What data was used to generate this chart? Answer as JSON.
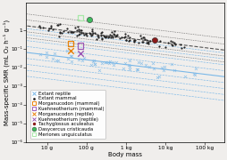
{
  "figsize_inches": [
    2.54,
    1.8
  ],
  "dpi": 100,
  "xlim": [
    3.0,
    300000
  ],
  "ylim": [
    1e-06,
    30
  ],
  "xlabel": "Body mass",
  "ylabel": "Mass-specific SMR (mL O₂ h⁻¹ g⁻¹)",
  "xtick_positions": [
    10,
    100,
    1000,
    10000,
    100000
  ],
  "xtick_labels": [
    "10 g",
    "100 g",
    "1 kg",
    "10 kg",
    "100 kg"
  ],
  "ytick_positions": [
    1e-06,
    1e-05,
    0.0001,
    0.001,
    0.01,
    0.1,
    1.0
  ],
  "ytick_labels": [
    "10⁻⁶",
    "10⁻⁵",
    "10⁻⁴",
    "10⁻³",
    "10⁻²",
    "10⁻¹",
    "1"
  ],
  "mammal_intercept": 0.38,
  "mammal_slope": -0.26,
  "reptile_intercept": -1.05,
  "reptile_slope": -0.26,
  "mammal_ci_offsets": [
    0.32,
    0.64
  ],
  "reptile_ci_offsets": [
    0.32,
    0.64,
    0.96,
    1.28
  ],
  "special_points": {
    "morganucodon_mammal": {
      "log_mass": 1.6,
      "log_smr": -0.7,
      "color": "#e8820a",
      "marker": "s"
    },
    "kuehneotherium_mammal": {
      "log_mass": 1.85,
      "log_smr": -0.82,
      "color": "#9b59b6",
      "marker": "s"
    },
    "morganucodon_reptile": {
      "log_mass": 1.6,
      "log_smr": -1.1,
      "color": "#e8820a",
      "marker": "x"
    },
    "kuehneotherium_reptile": {
      "log_mass": 1.85,
      "log_smr": -1.22,
      "color": "#9b59b6",
      "marker": "x"
    },
    "tachyglossus": {
      "log_mass": 3.72,
      "log_smr": -0.5,
      "color": "#8b1a1a",
      "marker": "o"
    },
    "dasycercus": {
      "log_mass": 2.08,
      "log_smr": 0.58,
      "color": "#3dba5c",
      "marker": "o"
    },
    "meriones": {
      "log_mass": 1.85,
      "log_smr": 0.68,
      "color": "#a8e8a8",
      "marker": "s"
    }
  },
  "mammal_line_color": "#555555",
  "mammal_dot_color": "#222222",
  "reptile_line_color": "#7ab8e8",
  "reptile_x_color": "#7ab8e8",
  "background_color": "#f0eeec",
  "legend_fontsize": 3.8,
  "axis_fontsize": 5.0,
  "tick_fontsize": 4.2
}
